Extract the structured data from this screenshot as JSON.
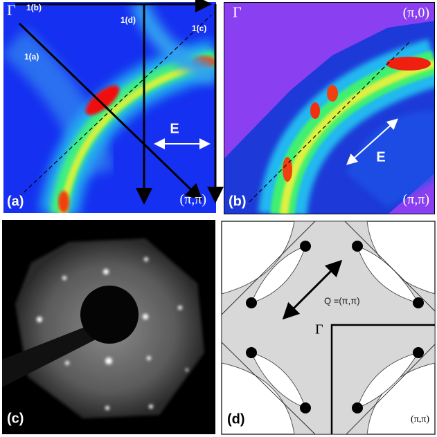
{
  "panels": [
    {
      "label": "(a)",
      "gamma": "Γ",
      "cut_b": "1(b)",
      "cut_d": "1(d)",
      "cut_c": "1(c)",
      "cut_a": "1(a)",
      "energy": "E",
      "corner": "(π,π)"
    },
    {
      "label": "(b)",
      "gamma": "Γ",
      "corner_top": "(π,0)",
      "energy": "E",
      "corner": "(π,π)"
    },
    {
      "label": "(c)"
    },
    {
      "label": "(d)",
      "vector": "Q =(π,π)",
      "gamma": "Γ",
      "corner": "(π,π)"
    }
  ]
}
